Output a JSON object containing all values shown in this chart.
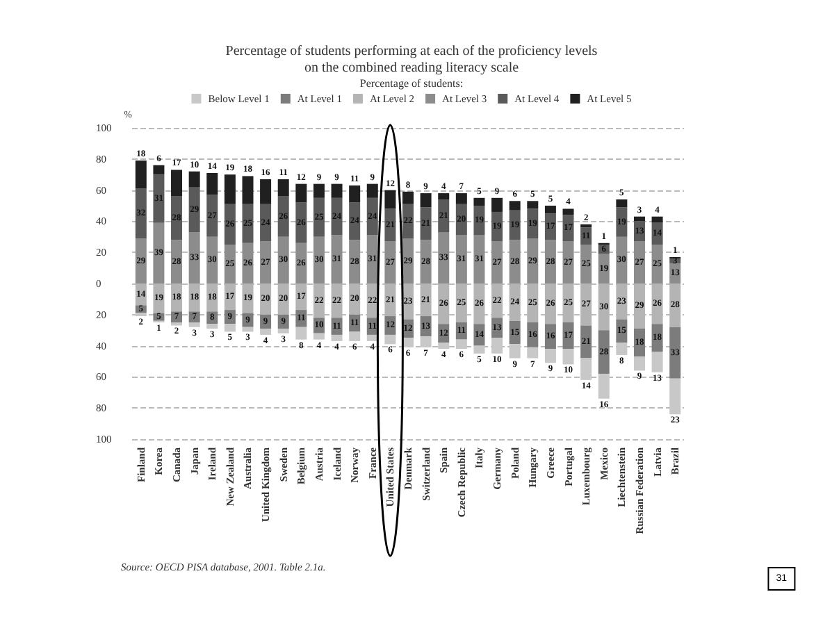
{
  "chart_data": {
    "type": "bar",
    "title": "Percentage of students performing at each of the proficiency levels\non the combined reading literacy scale",
    "legend_title": "Percentage of students:",
    "ylabel": "%",
    "categories": [
      "Finland",
      "Korea",
      "Canada",
      "Japan",
      "Ireland",
      "New Zealand",
      "Australia",
      "United Kingdom",
      "Sweden",
      "Belgium",
      "Austria",
      "Iceland",
      "Norway",
      "France",
      "United States",
      "Denmark",
      "Switzerland",
      "Spain",
      "Czech Republic",
      "Italy",
      "Germany",
      "Poland",
      "Hungary",
      "Greece",
      "Portugal",
      "Luxembourg",
      "Mexico",
      "Liechtenstein",
      "Russian Federation",
      "Latvia",
      "Brazil"
    ],
    "legend": "top",
    "grid": "y",
    "data_labels": true,
    "ylim": [
      -100,
      100
    ],
    "yticks": [
      {
        "value": -100,
        "label": "100"
      },
      {
        "value": -80,
        "label": "80"
      },
      {
        "value": -60,
        "label": "60"
      },
      {
        "value": -40,
        "label": "40"
      },
      {
        "value": -20,
        "label": "20"
      },
      0,
      20,
      40,
      60,
      80,
      100
    ],
    "series": [
      {
        "name": "At Level 3",
        "color": "#8c8c8c",
        "values": [
          29,
          39,
          28,
          33,
          30,
          25,
          26,
          27,
          30,
          26,
          30,
          31,
          28,
          31,
          27,
          29,
          28,
          33,
          31,
          31,
          27,
          28,
          29,
          28,
          27,
          25,
          19,
          30,
          27,
          25,
          13
        ],
        "base": [
          0,
          0,
          0,
          0,
          0,
          0,
          0,
          0,
          0,
          0,
          0,
          0,
          0,
          0,
          0,
          0,
          0,
          0,
          0,
          0,
          0,
          0,
          0,
          0,
          0,
          0,
          0,
          0,
          0,
          0,
          0
        ]
      },
      {
        "name": "At Level 4",
        "color": "#5a5a5a",
        "values": [
          32,
          31,
          28,
          29,
          27,
          26,
          25,
          24,
          26,
          26,
          25,
          24,
          24,
          24,
          21,
          22,
          21,
          21,
          20,
          19,
          19,
          19,
          19,
          17,
          17,
          11,
          6,
          19,
          13,
          14,
          3
        ],
        "base": [
          29,
          39,
          28,
          33,
          30,
          25,
          26,
          27,
          30,
          26,
          30,
          31,
          28,
          31,
          27,
          29,
          28,
          33,
          31,
          31,
          27,
          28,
          29,
          28,
          27,
          25,
          19,
          30,
          27,
          25,
          13
        ]
      },
      {
        "name": "At Level 5",
        "color": "#202020",
        "values": [
          18,
          6,
          17,
          10,
          14,
          19,
          18,
          16,
          11,
          12,
          9,
          9,
          11,
          9,
          12,
          8,
          9,
          4,
          7,
          5,
          9,
          6,
          5,
          5,
          4,
          2,
          1,
          5,
          3,
          4,
          1
        ],
        "base": [
          61,
          70,
          56,
          62,
          57,
          51,
          51,
          51,
          56,
          52,
          55,
          55,
          52,
          55,
          48,
          51,
          49,
          54,
          51,
          50,
          46,
          47,
          48,
          45,
          44,
          36,
          25,
          49,
          40,
          39,
          16
        ]
      },
      {
        "name": "At Level 2",
        "color": "#b4b4b4",
        "values": [
          14,
          19,
          18,
          18,
          18,
          17,
          19,
          20,
          20,
          17,
          22,
          22,
          20,
          22,
          21,
          23,
          21,
          26,
          25,
          26,
          22,
          24,
          25,
          26,
          25,
          27,
          30,
          23,
          29,
          26,
          28
        ],
        "base": [
          -14,
          -19,
          -18,
          -18,
          -18,
          -17,
          -19,
          -20,
          -20,
          -17,
          -22,
          -22,
          -20,
          -22,
          -21,
          -23,
          -21,
          -26,
          -25,
          -26,
          -22,
          -24,
          -25,
          -26,
          -25,
          -27,
          -30,
          -23,
          -29,
          -26,
          -28
        ]
      },
      {
        "name": "At Level 1",
        "color": "#7c7c7c",
        "values": [
          5,
          5,
          7,
          7,
          8,
          9,
          9,
          9,
          9,
          11,
          10,
          11,
          11,
          11,
          12,
          12,
          13,
          12,
          11,
          14,
          13,
          15,
          16,
          16,
          17,
          21,
          28,
          15,
          18,
          18,
          33
        ],
        "base": [
          -19,
          -24,
          -25,
          -25,
          -26,
          -26,
          -28,
          -29,
          -29,
          -28,
          -32,
          -33,
          -31,
          -33,
          -33,
          -35,
          -34,
          -38,
          -36,
          -40,
          -35,
          -39,
          -41,
          -42,
          -42,
          -48,
          -58,
          -38,
          -47,
          -44,
          -61
        ]
      },
      {
        "name": "Below Level 1",
        "color": "#c8c8c8",
        "values": [
          2,
          1,
          2,
          3,
          3,
          5,
          3,
          4,
          3,
          8,
          4,
          4,
          6,
          4,
          6,
          6,
          7,
          4,
          6,
          5,
          10,
          9,
          7,
          9,
          10,
          14,
          16,
          8,
          9,
          13,
          23
        ],
        "base": [
          -21,
          -25,
          -27,
          -28,
          -29,
          -31,
          -31,
          -33,
          -32,
          -36,
          -36,
          -37,
          -37,
          -37,
          -39,
          -41,
          -41,
          -42,
          -42,
          -45,
          -45,
          -48,
          -48,
          -51,
          -52,
          -62,
          -74,
          -46,
          -56,
          -57,
          -84
        ]
      }
    ],
    "annotations": [
      "Source: OECD PISA database, 2001. Table 2.1a.",
      "31"
    ]
  }
}
